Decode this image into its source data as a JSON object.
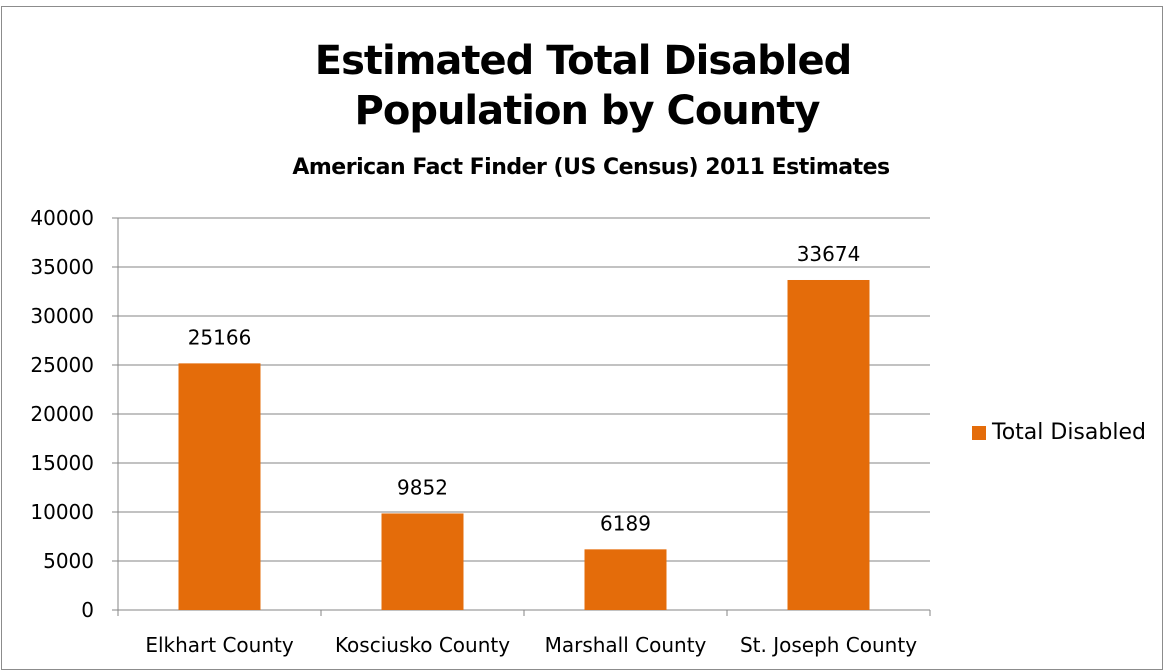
{
  "title_line1": "Estimated Total Disabled",
  "title_line2": "Population by County",
  "subtitle": "American Fact Finder (US Census) 2011 Estimates",
  "legend_label": "Total Disabled",
  "bar_color": "#E46C0A",
  "chart_data": {
    "type": "bar",
    "categories": [
      "Elkhart County",
      "Kosciusko County",
      "Marshall County",
      "St. Joseph County"
    ],
    "series": [
      {
        "name": "Total Disabled",
        "values": [
          25166,
          9852,
          6189,
          33674
        ]
      }
    ],
    "ylim": [
      0,
      40000
    ],
    "yticks": [
      0,
      5000,
      10000,
      15000,
      20000,
      25000,
      30000,
      35000,
      40000
    ],
    "data_labels": [
      "25166",
      "9852",
      "6189",
      "33674"
    ],
    "grid": true,
    "legend_position": "right"
  }
}
